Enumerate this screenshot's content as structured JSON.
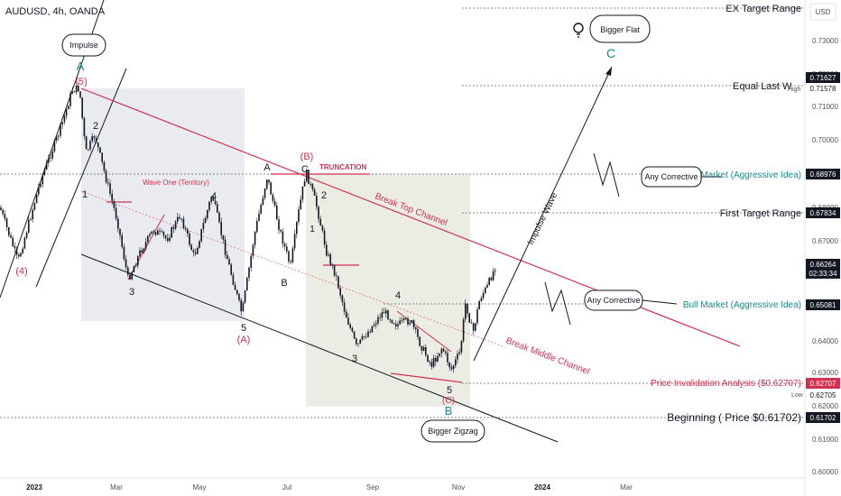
{
  "header": {
    "symbol_title": "AUDUSD, 4h, OANDA"
  },
  "currency_button": "USD",
  "chart_data": {
    "type": "candlestick",
    "symbol": "AUDUSD",
    "interval": "4h",
    "ylim": [
      0.6,
      0.74
    ],
    "y_ticks": [
      "0.73000",
      "0.72000",
      "0.71000",
      "0.70000",
      "0.68000",
      "0.67000",
      "0.64000",
      "0.63000",
      "0.62000",
      "0.61000",
      "0.60000"
    ],
    "x_ticks": [
      "2023",
      "Mar",
      "May",
      "Jul",
      "Sep",
      "Nov",
      "2024",
      "Mar"
    ],
    "price_tags": [
      {
        "id": "ex_target",
        "value": "0.71627",
        "style": "dark"
      },
      {
        "id": "high_value",
        "value": "0.71578",
        "style": "plain"
      },
      {
        "id": "aggressive_top",
        "value": "0.68976",
        "style": "dark"
      },
      {
        "id": "first_target",
        "value": "0.67834",
        "style": "dark"
      },
      {
        "id": "last_price",
        "value": "0.66264",
        "style": "dark"
      },
      {
        "id": "countdown",
        "value": "02:33:34",
        "style": "dark"
      },
      {
        "id": "bull_market",
        "value": "0.65081",
        "style": "dark"
      },
      {
        "id": "invalidation",
        "value": "0.62707",
        "style": "red"
      },
      {
        "id": "low_value",
        "value": "0.62705",
        "style": "plain"
      },
      {
        "id": "beginning",
        "value": "0.61702",
        "style": "dark"
      }
    ],
    "high_label": "High",
    "low_label": "Low",
    "level_labels": {
      "ex_target": "EX Target Range",
      "equal_last_wave": "Equal Last W",
      "bear_market": "Market (Aggressive Idea)",
      "first_target": "First Target Range",
      "bull_market": "Bull Market (Aggressive Idea)",
      "invalidation": "Price Invalidation Analysis ($0.62707)",
      "beginning": "Beginning ( Price $0.61702)"
    },
    "channel_labels": {
      "break_top": "Break Top Channel",
      "break_middle": "Break Middle Channel",
      "impulse_wave": "Impulse Wave"
    },
    "text_notes": {
      "wave_one": "Wave One (Territory)",
      "truncation": "TRUNCATION"
    },
    "bubbles": {
      "impulse": "Impulse",
      "bigger_flat": "Bigger Flat",
      "any_corrective_1": "Any Corrective",
      "any_corrective_2": "Any Corrective",
      "bigger_zigzag": "Bigger Zigzag"
    },
    "wave_labels": [
      "A",
      "(5)",
      "2",
      "1",
      "3",
      "4",
      "(4)",
      "5",
      "(A)",
      "A",
      "(B)",
      "C",
      "B",
      "1",
      "2",
      "3",
      "4",
      "5",
      "(C)",
      "B",
      "C"
    ]
  }
}
